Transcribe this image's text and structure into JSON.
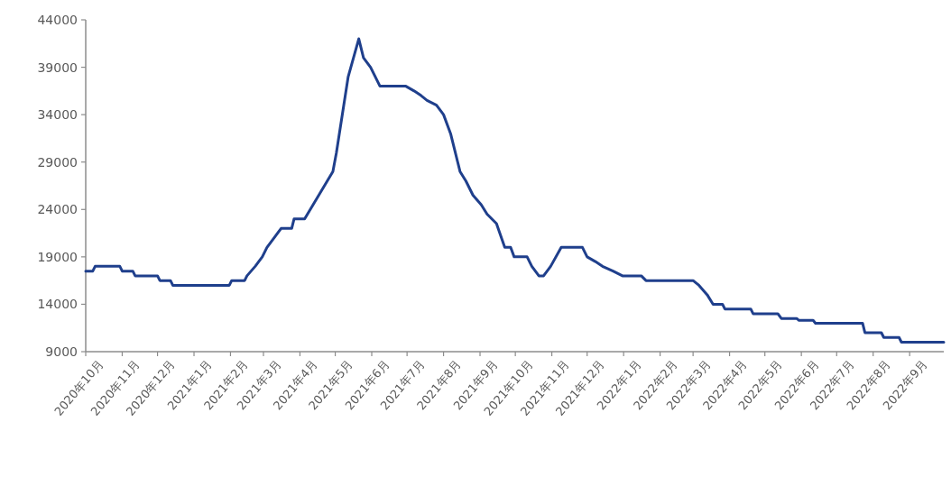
{
  "chart_data": {
    "type": "line",
    "x": [
      "2020-10-01",
      "2020-10-07",
      "2020-10-09",
      "2020-10-30",
      "2020-11-01",
      "2020-11-10",
      "2020-11-12",
      "2020-12-01",
      "2020-12-03",
      "2020-12-12",
      "2020-12-14",
      "2021-01-31",
      "2021-02-02",
      "2021-02-13",
      "2021-02-15",
      "2021-02-22",
      "2021-02-28",
      "2021-03-04",
      "2021-03-10",
      "2021-03-16",
      "2021-03-25",
      "2021-03-27",
      "2021-04-05",
      "2021-04-17",
      "2021-04-29",
      "2021-05-02",
      "2021-05-12",
      "2021-05-21",
      "2021-05-25",
      "2021-05-31",
      "2021-06-08",
      "2021-06-30",
      "2021-07-07",
      "2021-07-13",
      "2021-07-18",
      "2021-07-26",
      "2021-08-01",
      "2021-08-07",
      "2021-08-11",
      "2021-08-15",
      "2021-08-20",
      "2021-08-26",
      "2021-09-02",
      "2021-09-07",
      "2021-09-15",
      "2021-09-22",
      "2021-09-27",
      "2021-09-30",
      "2021-10-11",
      "2021-10-15",
      "2021-10-21",
      "2021-10-25",
      "2021-10-31",
      "2021-11-09",
      "2021-11-27",
      "2021-12-01",
      "2021-12-08",
      "2021-12-14",
      "2021-12-23",
      "2021-12-31",
      "2022-01-16",
      "2022-01-20",
      "2022-03-01",
      "2022-03-06",
      "2022-03-13",
      "2022-03-18",
      "2022-03-26",
      "2022-03-28",
      "2022-04-19",
      "2022-04-21",
      "2022-05-12",
      "2022-05-15",
      "2022-05-28",
      "2022-05-30",
      "2022-06-11",
      "2022-06-13",
      "2022-07-23",
      "2022-07-25",
      "2022-08-08",
      "2022-08-10",
      "2022-08-23",
      "2022-08-25",
      "2022-09-30"
    ],
    "series": [
      {
        "color": "#1f3f8c",
        "values": [
          17500,
          17500,
          18000,
          18000,
          17500,
          17500,
          17000,
          17000,
          16500,
          16500,
          16000,
          16000,
          16500,
          16500,
          17000,
          18000,
          19000,
          20000,
          21000,
          22000,
          22000,
          23000,
          23000,
          25500,
          28000,
          30000,
          38000,
          42000,
          40000,
          39000,
          37000,
          37000,
          36500,
          36000,
          35500,
          35000,
          34000,
          32000,
          30000,
          28000,
          27000,
          25500,
          24500,
          23500,
          22500,
          20000,
          20000,
          19000,
          19000,
          18000,
          17000,
          17000,
          18000,
          20000,
          20000,
          19000,
          18500,
          18000,
          17500,
          17000,
          17000,
          16500,
          16500,
          16000,
          15000,
          14000,
          14000,
          13500,
          13500,
          13000,
          13000,
          12500,
          12500,
          12300,
          12300,
          12000,
          12000,
          11000,
          11000,
          10500,
          10500,
          10000,
          10000
        ]
      }
    ],
    "xlim": [
      "2020-10-01",
      "2022-09-30"
    ],
    "xticks": [
      {
        "value": "2020-10-01",
        "label": "2020年10月"
      },
      {
        "value": "2020-11-01",
        "label": "2020年11月"
      },
      {
        "value": "2020-12-01",
        "label": "2020年12月"
      },
      {
        "value": "2021-01-01",
        "label": "2021年1月"
      },
      {
        "value": "2021-02-01",
        "label": "2021年2月"
      },
      {
        "value": "2021-03-01",
        "label": "2021年3月"
      },
      {
        "value": "2021-04-01",
        "label": "2021年4月"
      },
      {
        "value": "2021-05-01",
        "label": "2021年5月"
      },
      {
        "value": "2021-06-01",
        "label": "2021年6月"
      },
      {
        "value": "2021-07-01",
        "label": "2021年7月"
      },
      {
        "value": "2021-08-01",
        "label": "2021年8月"
      },
      {
        "value": "2021-09-01",
        "label": "2021年9月"
      },
      {
        "value": "2021-10-01",
        "label": "2021年10月"
      },
      {
        "value": "2021-11-01",
        "label": "2021年11月"
      },
      {
        "value": "2021-12-01",
        "label": "2021年12月"
      },
      {
        "value": "2022-01-01",
        "label": "2022年1月"
      },
      {
        "value": "2022-02-01",
        "label": "2022年2月"
      },
      {
        "value": "2022-03-01",
        "label": "2022年3月"
      },
      {
        "value": "2022-04-01",
        "label": "2022年4月"
      },
      {
        "value": "2022-05-01",
        "label": "2022年5月"
      },
      {
        "value": "2022-06-01",
        "label": "2022年6月"
      },
      {
        "value": "2022-07-01",
        "label": "2022年7月"
      },
      {
        "value": "2022-08-01",
        "label": "2022年8月"
      },
      {
        "value": "2022-09-01",
        "label": "2022年9月"
      }
    ],
    "ylim": [
      9000,
      44000
    ],
    "yticks": [
      9000,
      14000,
      19000,
      24000,
      29000,
      34000,
      39000,
      44000
    ]
  }
}
